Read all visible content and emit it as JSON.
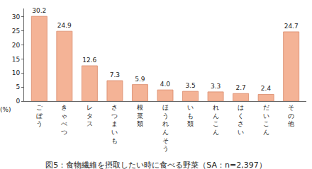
{
  "chart_data": {
    "type": "bar",
    "title": "図5：食物繊維を摂取したい時に食べる野菜（SA：n=2,397）",
    "y_label": "(%)",
    "categories": [
      "ごぼう",
      "きゃべつ",
      "レタス",
      "さつまいも",
      "根菜類",
      "ほうれんそう",
      "いも類",
      "れんこん",
      "はくさい",
      "だいこん",
      "その他"
    ],
    "values": [
      30.2,
      24.9,
      12.6,
      7.3,
      5.9,
      4.0,
      3.5,
      3.3,
      2.7,
      2.4,
      24.7
    ],
    "value_labels": [
      "30.2",
      "24.9",
      "12.6",
      "7.3",
      "5.9",
      "4.0",
      "3.5",
      "3.3",
      "2.7",
      "2.4",
      "24.7"
    ],
    "color": "#f4b396",
    "ylim": [
      0,
      33
    ],
    "yticks": [
      0,
      5,
      10,
      15,
      20,
      25,
      30
    ],
    "grid": false,
    "data_labels": true
  }
}
